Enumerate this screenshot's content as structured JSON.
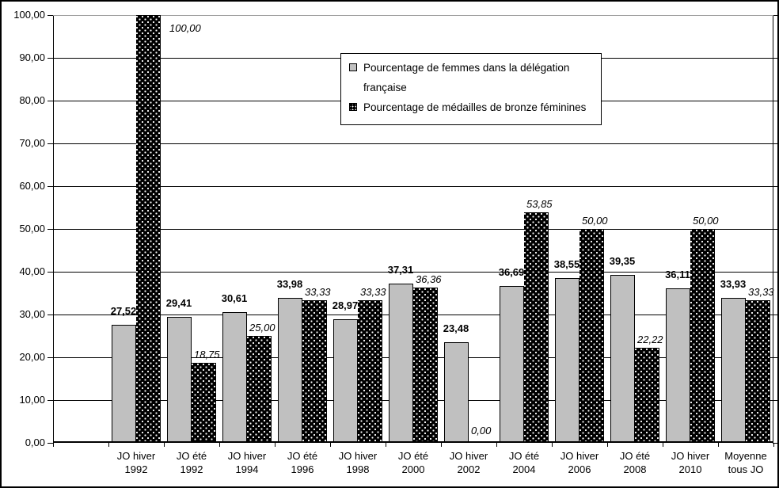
{
  "chart_data": {
    "type": "bar",
    "title": "",
    "xlabel": "",
    "ylabel": "",
    "ylim": [
      0,
      100
    ],
    "grid": true,
    "legend_position": "top-center",
    "decimal_separator": ",",
    "categories": [
      {
        "line1": "JO hiver",
        "line2": "1992"
      },
      {
        "line1": "JO été",
        "line2": "1992"
      },
      {
        "line1": "JO hiver",
        "line2": "1994"
      },
      {
        "line1": "JO été",
        "line2": "1996"
      },
      {
        "line1": "JO hiver",
        "line2": "1998"
      },
      {
        "line1": "JO été",
        "line2": "2000"
      },
      {
        "line1": "JO hiver",
        "line2": "2002"
      },
      {
        "line1": "JO été",
        "line2": "2004"
      },
      {
        "line1": "JO hiver",
        "line2": "2006"
      },
      {
        "line1": "JO été",
        "line2": "2008"
      },
      {
        "line1": "JO hiver",
        "line2": "2010"
      },
      {
        "line1": "Moyenne",
        "line2": "tous JO"
      }
    ],
    "series": [
      {
        "name": "Pourcentage de femmes dans la délégation française",
        "color": "#C0C0C0",
        "pattern": "solid",
        "label_style": "bold",
        "values": [
          27.52,
          29.41,
          30.61,
          33.98,
          28.97,
          37.31,
          23.48,
          36.69,
          38.55,
          39.35,
          36.11,
          33.93
        ],
        "labels": [
          "27,52",
          "29,41",
          "30,61",
          "33,98",
          "28,97",
          "37,31",
          "23,48",
          "36,69",
          "38,55",
          "39,35",
          "36,11",
          "33,93"
        ]
      },
      {
        "name": "Pourcentage de médailles de bronze féminines",
        "color": "#000000",
        "pattern": "white-dots",
        "label_style": "italic",
        "values": [
          100.0,
          18.75,
          25.0,
          33.33,
          33.33,
          36.36,
          0.0,
          53.85,
          50.0,
          22.22,
          50.0,
          33.33
        ],
        "labels": [
          "100,00",
          "18,75",
          "25,00",
          "33,33",
          "33,33",
          "36,36",
          "0,00",
          "53,85",
          "50,00",
          "22,22",
          "50,00",
          "33,33"
        ]
      }
    ],
    "yticks": [
      {
        "v": 0,
        "label": "0,00"
      },
      {
        "v": 10,
        "label": "10,00"
      },
      {
        "v": 20,
        "label": "20,00"
      },
      {
        "v": 30,
        "label": "30,00"
      },
      {
        "v": 40,
        "label": "40,00"
      },
      {
        "v": 50,
        "label": "50,00"
      },
      {
        "v": 60,
        "label": "60,00"
      },
      {
        "v": 70,
        "label": "70,00"
      },
      {
        "v": 80,
        "label": "80,00"
      },
      {
        "v": 90,
        "label": "90,00"
      },
      {
        "v": 100,
        "label": "100,00"
      }
    ],
    "colors": {
      "grid": "#000000",
      "grid_top": "#9b9b9b",
      "axis": "#000000",
      "background": "#ffffff"
    }
  }
}
